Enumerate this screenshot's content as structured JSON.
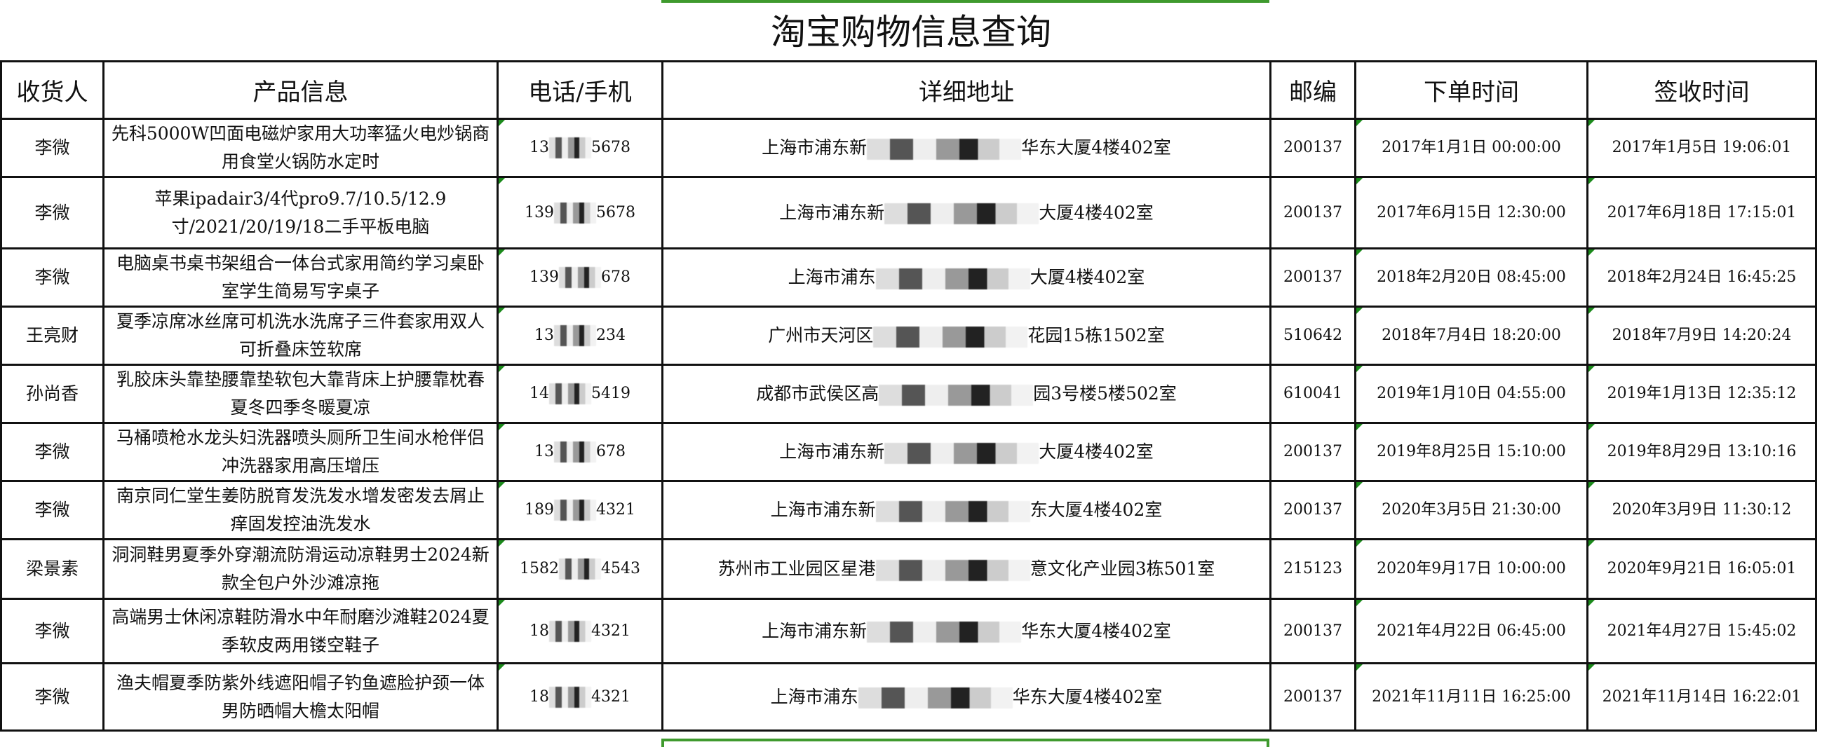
{
  "title": "淘宝购物信息查询",
  "headers": [
    "收货人",
    "产品信息",
    "电话/手机",
    "详细地址",
    "邮编",
    "下单时间",
    "签收时间"
  ],
  "rows": [
    {
      "name": "李微",
      "product": "先科5000W凹面电磁炉家用大功率猛火电炒锅商用食堂火锅防水定时",
      "phone_start": "13",
      "phone_end": "5678",
      "addr_start": "上海市浦东新",
      "addr_end": "华东大厦4楼402室",
      "zip": "200137",
      "order": "2017年1月1日  00:00:00",
      "sign": "2017年1月5日  19:06:01"
    },
    {
      "name": "李微",
      "product": "苹果ipadair3/4代pro9.7/10.5/12.9寸/2021/20/19/18二手平板电脑",
      "phone_start": "139",
      "phone_end": "5678",
      "addr_start": "上海市浦东新",
      "addr_end": "大厦4楼402室",
      "zip": "200137",
      "order": "2017年6月15日  12:30:00",
      "sign": "2017年6月18日  17:15:01"
    },
    {
      "name": "李微",
      "product": "电脑桌书桌书架组合一体台式家用简约学习桌卧室学生简易写字桌子",
      "phone_start": "139",
      "phone_end": "678",
      "addr_start": "上海市浦东",
      "addr_end": "大厦4楼402室",
      "zip": "200137",
      "order": "2018年2月20日  08:45:00",
      "sign": "2018年2月24日  16:45:25"
    },
    {
      "name": "王亮财",
      "product": "夏季凉席冰丝席可机洗水洗席子三件套家用双人可折叠床笠软席",
      "phone_start": "13",
      "phone_end": "234",
      "addr_start": "广州市天河区",
      "addr_end": "花园15栋1502室",
      "zip": "510642",
      "order": "2018年7月4日  18:20:00",
      "sign": "2018年7月9日  14:20:24"
    },
    {
      "name": "孙尚香",
      "product": "乳胶床头靠垫腰靠垫软包大靠背床上护腰靠枕春夏冬四季冬暖夏凉",
      "phone_start": "14",
      "phone_end": "5419",
      "addr_start": "成都市武侯区高",
      "addr_end": "园3号楼5楼502室",
      "zip": "610041",
      "order": "2019年1月10日  04:55:00",
      "sign": "2019年1月13日  12:35:12"
    },
    {
      "name": "李微",
      "product": "马桶喷枪水龙头妇洗器喷头厕所卫生间水枪伴侣冲洗器家用高压增压",
      "phone_start": "13",
      "phone_end": "678",
      "addr_start": "上海市浦东新",
      "addr_end": "大厦4楼402室",
      "zip": "200137",
      "order": "2019年8月25日  15:10:00",
      "sign": "2019年8月29日  13:10:16"
    },
    {
      "name": "李微",
      "product": "南京同仁堂生姜防脱育发洗发水增发密发去屑止痒固发控油洗发水",
      "phone_start": "189",
      "phone_end": "4321",
      "addr_start": "上海市浦东新",
      "addr_end": "东大厦4楼402室",
      "zip": "200137",
      "order": "2020年3月5日  21:30:00",
      "sign": "2020年3月9日  11:30:12"
    },
    {
      "name": "梁景素",
      "product": "洞洞鞋男夏季外穿潮流防滑运动凉鞋男士2024新款全包户外沙滩凉拖",
      "phone_start": "1582",
      "phone_end": "4543",
      "addr_start": "苏州市工业园区星港",
      "addr_end": "意文化产业园3栋501室",
      "zip": "215123",
      "order": "2020年9月17日  10:00:00",
      "sign": "2020年9月21日  16:05:01"
    },
    {
      "name": "李微",
      "product": "高端男士休闲凉鞋防滑水中年耐磨沙滩鞋2024夏季软皮两用镂空鞋子",
      "phone_start": "18",
      "phone_end": "4321",
      "addr_start": "上海市浦东新",
      "addr_end": "华东大厦4楼402室",
      "zip": "200137",
      "order": "2021年4月22日  06:45:00",
      "sign": "2021年4月27日  15:45:02"
    },
    {
      "name": "李微",
      "product": "渔夫帽夏季防紫外线遮阳帽子钓鱼遮脸护颈一体男防晒帽大檐太阳帽",
      "phone_start": "18",
      "phone_end": "4321",
      "addr_start": "上海市浦东",
      "addr_end": "华东大厦4楼402室",
      "zip": "200137",
      "order": "2021年11月11日  16:25:00",
      "sign": "2021年11月14日  16:22:01"
    }
  ],
  "colors": {
    "selection": "#3f9a2e",
    "comment_marker": "#1b8a1b",
    "border": "#111111"
  }
}
